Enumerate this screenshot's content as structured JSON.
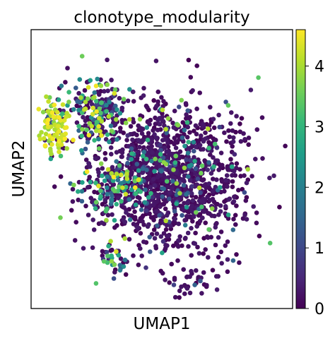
{
  "chart_data": {
    "type": "scatter",
    "title": "clonotype_modularity",
    "xlabel": "UMAP1",
    "ylabel": "UMAP2",
    "x_ticks": "none",
    "y_ticks": "none",
    "grid": false,
    "legend": "none",
    "colorbar": {
      "placement": "right",
      "colormap": "viridis",
      "min": 0,
      "max": 4.6,
      "ticks": [
        0,
        1,
        2,
        3,
        4
      ],
      "tick_labels": [
        "0",
        "1",
        "2",
        "3",
        "4"
      ]
    },
    "x_range": [
      0,
      10
    ],
    "y_range": [
      0,
      10
    ],
    "n_points_approx": 1900,
    "clusters": [
      {
        "name": "central cloud (low values)",
        "center": [
          5.3,
          4.7
        ],
        "spread": [
          2.6,
          2.3
        ],
        "share": 0.72,
        "value_mix": "mostly 0-0.5"
      },
      {
        "name": "upper-left arm (mixed)",
        "center": [
          2.5,
          7.2
        ],
        "spread": [
          1.1,
          1.1
        ],
        "share": 0.11,
        "value_mix": "mixed 0-4.5"
      },
      {
        "name": "left edge (high values)",
        "center": [
          0.9,
          6.5
        ],
        "spread": [
          0.55,
          0.9
        ],
        "share": 0.06,
        "value_mix": "mostly 3.5-4.6"
      },
      {
        "name": "left-center band (mixed)",
        "center": [
          3.1,
          4.4
        ],
        "spread": [
          1.1,
          0.8
        ],
        "share": 0.07,
        "value_mix": "mixed 1-4.5"
      },
      {
        "name": "lower-left small group",
        "center": [
          3.2,
          1.8
        ],
        "spread": [
          0.5,
          0.5
        ],
        "share": 0.02,
        "value_mix": "mixed 1-4"
      },
      {
        "name": "bottom tail",
        "center": [
          6.0,
          1.0
        ],
        "spread": [
          0.9,
          0.6
        ],
        "share": 0.02,
        "value_mix": "low 0-0.5"
      }
    ]
  },
  "colors": {
    "viridis": [
      "#440154",
      "#482878",
      "#3e4989",
      "#31688e",
      "#26828e",
      "#1f9e89",
      "#35b779",
      "#6ece58",
      "#b5de2b",
      "#fde725"
    ],
    "low_point": "#440154",
    "axes": "#000000"
  }
}
